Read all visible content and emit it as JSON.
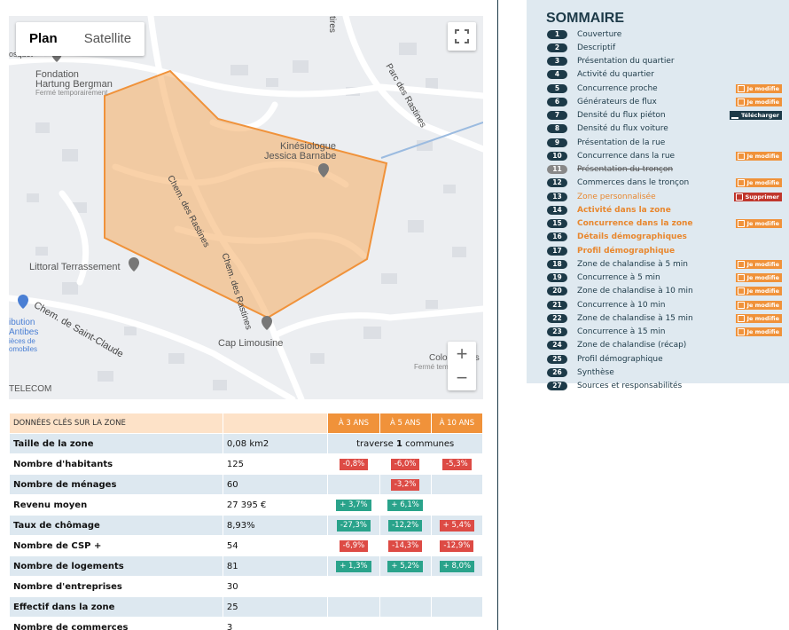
{
  "map": {
    "toggle": {
      "plan": "Plan",
      "satellite": "Satellite"
    },
    "zoom_in": "+",
    "zoom_out": "−",
    "places": {
      "fondation_line1": "Fondation",
      "fondation_line2": "Hartung Bergman",
      "fondation_status": "Fermé temporairement",
      "bosquet": "osquet",
      "kinesiologue_line1": "Kinésiologue",
      "kinesiologue_line2": "Jessica Barnabe",
      "littoral": "Littoral Terrassement",
      "cap": "Cap Limousine",
      "colorfantais": "ColorFantais",
      "colorfantais_status": "Fermé temporairem",
      "telecom": "TELECOM",
      "distribution_line1": "ibution",
      "distribution_line2": "Antibes",
      "distribution_line3": "ièces de",
      "distribution_line4": "omobiles"
    },
    "roads": {
      "rastines1": "Chem. des Rastines",
      "rastines2": "Chem. des Rastines",
      "saint_claude": "Chem. de Saint-Claude",
      "parc": "Parc des Rastines",
      "tires": "tires"
    }
  },
  "key_table": {
    "header": {
      "title": "DONNÉES CLÉS SUR LA ZONE",
      "y3": "À 3 ANS",
      "y5": "À 5 ANS",
      "y10": "À 10 ANS"
    },
    "rows": [
      {
        "label": "Taille de la zone",
        "value": "0,08 km2",
        "span_text_pre": "traverse ",
        "span_text_bold": "1",
        "span_text_post": " communes"
      },
      {
        "label": "Nombre d'habitants",
        "value": "125",
        "y3": "-0,8%",
        "y3_type": "neg",
        "y5": "-6,0%",
        "y5_type": "neg",
        "y10": "-5,3%",
        "y10_type": "neg"
      },
      {
        "label": "Nombre de ménages",
        "value": "60",
        "y3": "",
        "y5": "-3,2%",
        "y5_type": "neg",
        "y10": ""
      },
      {
        "label": "Revenu moyen",
        "value": "27 395 €",
        "y3": "+ 3,7%",
        "y3_type": "pos",
        "y5": "+ 6,1%",
        "y5_type": "pos",
        "y10": ""
      },
      {
        "label": "Taux de chômage",
        "value": "8,93%",
        "y3": "-27,3%",
        "y3_type": "pos",
        "y5": "-12,2%",
        "y5_type": "pos",
        "y10": "+ 5,4%",
        "y10_type": "neg"
      },
      {
        "label": "Nombre de CSP +",
        "value": "54",
        "y3": "-6,9%",
        "y3_type": "neg",
        "y5": "-14,3%",
        "y5_type": "neg",
        "y10": "-12,9%",
        "y10_type": "neg"
      },
      {
        "label": "Nombre de logements",
        "value": "81",
        "y3": "+ 1,3%",
        "y3_type": "pos",
        "y5": "+ 5,2%",
        "y5_type": "pos",
        "y10": "+ 8,0%",
        "y10_type": "pos"
      },
      {
        "label": "Nombre d'entreprises",
        "value": "30",
        "y3": "",
        "y5": "",
        "y10": ""
      },
      {
        "label": "Effectif dans la zone",
        "value": "25",
        "y3": "",
        "y5": "",
        "y10": ""
      },
      {
        "label": "Nombre de commerces",
        "value": "3",
        "y3": "",
        "y5": "",
        "y10": ""
      }
    ]
  },
  "sommaire": {
    "title": "SOMMAIRE",
    "items": [
      {
        "num": "1",
        "label": "Couverture",
        "style": "normal",
        "action": ""
      },
      {
        "num": "2",
        "label": "Descriptif",
        "style": "normal",
        "action": ""
      },
      {
        "num": "3",
        "label": "Présentation du quartier",
        "style": "normal",
        "action": ""
      },
      {
        "num": "4",
        "label": "Activité du quartier",
        "style": "normal",
        "action": ""
      },
      {
        "num": "5",
        "label": "Concurrence proche",
        "style": "normal",
        "action": "Je modifie"
      },
      {
        "num": "6",
        "label": "Générateurs de flux",
        "style": "normal",
        "action": "Je modifie"
      },
      {
        "num": "7",
        "label": "Densité du flux piéton",
        "style": "normal",
        "action": "Télécharger"
      },
      {
        "num": "8",
        "label": "Densité du flux voiture",
        "style": "normal",
        "action": ""
      },
      {
        "num": "9",
        "label": "Présentation de la rue",
        "style": "normal",
        "action": ""
      },
      {
        "num": "10",
        "label": "Concurrence dans la rue",
        "style": "normal",
        "action": "Je modifie"
      },
      {
        "num": "11",
        "label": "Présentation du tronçon",
        "style": "strike",
        "action": ""
      },
      {
        "num": "12",
        "label": "Commerces dans le tronçon",
        "style": "normal",
        "action": "Je modifie"
      },
      {
        "num": "13",
        "label": "Zone personnalisée",
        "style": "orange-normal",
        "action": "Supprimer"
      },
      {
        "num": "14",
        "label": "Activité dans la zone",
        "style": "orange",
        "action": ""
      },
      {
        "num": "15",
        "label": "Concurrence dans la zone",
        "style": "orange",
        "action": "Je modifie"
      },
      {
        "num": "16",
        "label": "Détails démographiques",
        "style": "orange",
        "action": ""
      },
      {
        "num": "17",
        "label": "Profil démographique",
        "style": "orange",
        "action": ""
      },
      {
        "num": "18",
        "label": "Zone de chalandise à 5 min",
        "style": "normal",
        "action": "Je modifie"
      },
      {
        "num": "19",
        "label": "Concurrence à 5 min",
        "style": "normal",
        "action": "Je modifie"
      },
      {
        "num": "20",
        "label": "Zone de chalandise à 10 min",
        "style": "normal",
        "action": "Je modifie"
      },
      {
        "num": "21",
        "label": "Concurrence à 10 min",
        "style": "normal",
        "action": "Je modifie"
      },
      {
        "num": "22",
        "label": "Zone de chalandise à 15 min",
        "style": "normal",
        "action": "Je modifie"
      },
      {
        "num": "23",
        "label": "Concurrence à 15 min",
        "style": "normal",
        "action": "Je modifie"
      },
      {
        "num": "24",
        "label": "Zone de chalandise (récap)",
        "style": "normal",
        "action": ""
      },
      {
        "num": "25",
        "label": "Profil démographique",
        "style": "normal",
        "action": ""
      },
      {
        "num": "26",
        "label": "Synthèse",
        "style": "normal",
        "action": ""
      },
      {
        "num": "27",
        "label": "Sources et responsabilités",
        "style": "normal",
        "action": ""
      }
    ]
  },
  "colors": {
    "navy": "#1d3a48",
    "orange": "#f0923a",
    "red": "#dd4b45",
    "green": "#2aa38b",
    "sidebar_bg": "#dfe9f0"
  }
}
